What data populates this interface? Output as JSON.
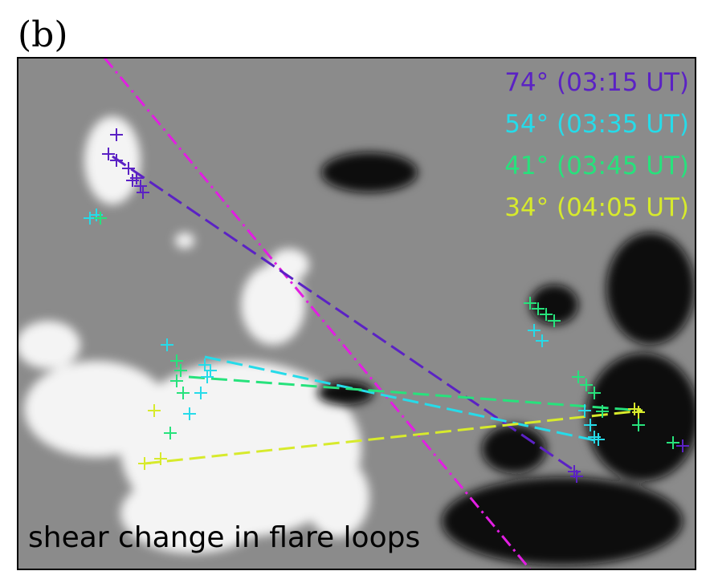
{
  "panel_label": "(b)",
  "legend": [
    {
      "label": "74° (03:15 UT)",
      "color": "#5b22c4"
    },
    {
      "label": "54° (03:35 UT)",
      "color": "#26dbe9"
    },
    {
      "label": "41° (03:45 UT)",
      "color": "#27e27c"
    },
    {
      "label": "34° (04:05 UT)",
      "color": "#d7ea2c"
    }
  ],
  "caption": "shear change in flare loops"
}
